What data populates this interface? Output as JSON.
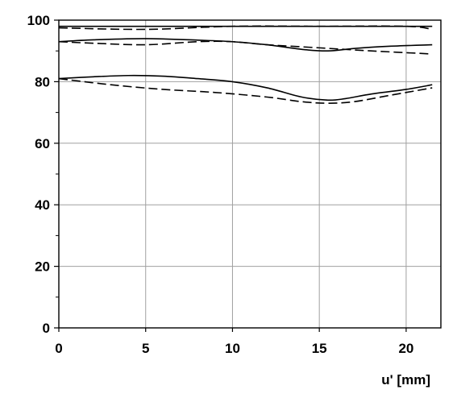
{
  "chart_data": {
    "type": "line",
    "title": "",
    "xlabel": "u' [mm]",
    "ylabel": "",
    "xlim": [
      0,
      22
    ],
    "ylim": [
      0,
      100
    ],
    "x_ticks": [
      0,
      5,
      10,
      15,
      20
    ],
    "x_tick_labels": [
      "0",
      "5",
      "10",
      "15",
      "20"
    ],
    "y_ticks": [
      0,
      20,
      40,
      60,
      80,
      100
    ],
    "y_tick_labels": [
      "0",
      "20",
      "40",
      "60",
      "80",
      "100"
    ],
    "y_minor_ticks": [
      10,
      30,
      50,
      70,
      90
    ],
    "grid": true,
    "legend": "none",
    "colors": {
      "line": "#000000",
      "grid": "#a0a0a0",
      "frame": "#000000",
      "background": "#ffffff"
    },
    "series": [
      {
        "style": "solid",
        "x": [
          0,
          5,
          10,
          15,
          20,
          21.5
        ],
        "y": [
          98,
          98,
          98,
          98,
          98,
          98
        ]
      },
      {
        "style": "dashed",
        "x": [
          0,
          5,
          10,
          15,
          20,
          21.5
        ],
        "y": [
          97.5,
          97,
          98,
          98,
          98,
          97
        ]
      },
      {
        "style": "solid",
        "x": [
          0,
          2,
          5,
          8,
          10,
          12,
          14,
          15.5,
          17,
          19,
          21.5
        ],
        "y": [
          93,
          93.6,
          94,
          93.5,
          93,
          92,
          90.5,
          90,
          90.8,
          91.5,
          92
        ]
      },
      {
        "style": "dashed",
        "x": [
          0,
          2,
          5,
          8,
          10,
          12,
          15,
          18,
          21.5
        ],
        "y": [
          93,
          92.5,
          92,
          93,
          93,
          92,
          91,
          90,
          89
        ]
      },
      {
        "style": "solid",
        "x": [
          0,
          2,
          4,
          6,
          8,
          10,
          12,
          14,
          15.5,
          16.5,
          18,
          20,
          21.5
        ],
        "y": [
          81,
          81.6,
          82,
          81.8,
          81,
          80,
          78,
          75,
          74,
          74.5,
          76,
          77.5,
          79
        ]
      },
      {
        "style": "dashed",
        "x": [
          0,
          3,
          6,
          9,
          12,
          14,
          15.5,
          17,
          19,
          21.5
        ],
        "y": [
          81,
          79,
          77.5,
          76.5,
          75,
          73.5,
          73,
          73.5,
          75.5,
          78
        ]
      }
    ]
  }
}
